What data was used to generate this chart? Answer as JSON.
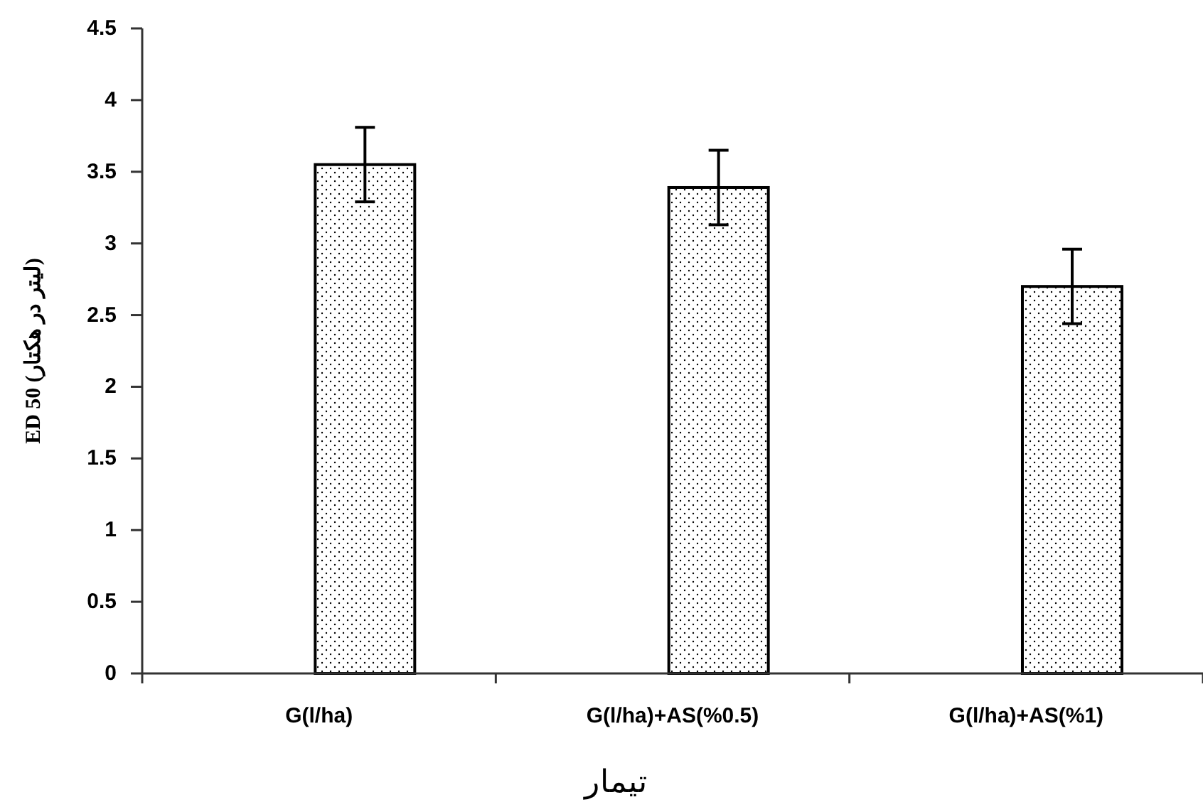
{
  "chart_data": {
    "type": "bar",
    "xlabel": "تیمار",
    "ylabel": "ED 50 (لیتر در هکتار)",
    "categories": [
      "G(l/ha)",
      "G(l/ha)+AS(%0.5)",
      "G(l/ha)+AS(%1)"
    ],
    "values": [
      3.55,
      3.39,
      2.7
    ],
    "errors": [
      0.26,
      0.26,
      0.26
    ],
    "color": "#000000",
    "ylim": [
      0,
      4.5
    ],
    "yticks": [
      0,
      0.5,
      1,
      1.5,
      2,
      2.5,
      3,
      3.5,
      4,
      4.5
    ],
    "grid": false
  }
}
